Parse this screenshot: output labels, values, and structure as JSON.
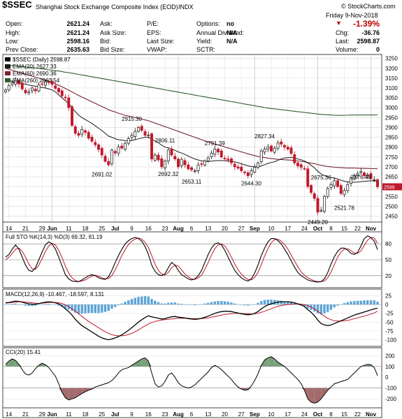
{
  "header": {
    "symbol": "$SSEC",
    "name": "Shanghai Stock Exchange Composite Index (EOD)",
    "exchange": "INDX",
    "copyright": "© StockCharts.com",
    "date": "Friday   9-Nov-2018",
    "change_pct": "-1.39%",
    "quote": [
      {
        "label": "Open:",
        "value": "2621.24"
      },
      {
        "label": "High:",
        "value": "2621.24"
      },
      {
        "label": "Low:",
        "value": "2598.16"
      },
      {
        "label": "Prev Close:",
        "value": "2635.63"
      }
    ],
    "col2": [
      "Ask:",
      "Ask Size:",
      "Bid:",
      "Bid Size:"
    ],
    "col3": [
      "P/E:",
      "EPS:",
      "Last Size:",
      "VWAP:"
    ],
    "col4": [
      {
        "label": "Options:",
        "value": "no"
      },
      {
        "label": "Annual Dividend:",
        "value": "N/A"
      },
      {
        "label": "Yield:",
        "value": "N/A"
      },
      {
        "label": "SCTR:",
        "value": ""
      }
    ],
    "right": [
      {
        "label": "Chg:",
        "value": "-36.76"
      },
      {
        "label": "Last:",
        "value": "2598.87"
      },
      {
        "label": "Volume:",
        "value": "0"
      }
    ]
  },
  "colors": {
    "up": "#111111",
    "down": "#c0182b",
    "ema20": "#1a1a1a",
    "ema60": "#7a2330",
    "ema260": "#2e5e2e",
    "sto_k": "#000000",
    "sto_d": "#c0182b",
    "macd": "#000000",
    "signal": "#c0182b",
    "hist": "#5da4d6",
    "cci_pos": "#7aa07a",
    "cci_neg": "#a36b6b"
  },
  "chart_data": {
    "type": "candlestick",
    "price_panel": {
      "legend": [
        "$SSEC (Daily) 2598.87",
        "EMA(20) 2627.33",
        "EMA(60) 2690.36",
        "EMA(260) 2963.54"
      ],
      "yticks": [
        2450,
        2500,
        2550,
        2600,
        2650,
        2700,
        2750,
        2800,
        2850,
        2900,
        2950,
        3000,
        3050,
        3100,
        3150,
        3200,
        3250
      ],
      "ylim": [
        2420,
        3270
      ],
      "last_price": 2598.87,
      "annotations": [
        {
          "text": "2915.30",
          "i": 38,
          "y": 2915.3
        },
        {
          "text": "2806.11",
          "i": 48,
          "y": 2806.11
        },
        {
          "text": "2791.39",
          "i": 63,
          "y": 2791.39
        },
        {
          "text": "2827.34",
          "i": 78,
          "y": 2827.34
        },
        {
          "text": "2691.02",
          "i": 29,
          "y": 2691.02
        },
        {
          "text": "2692.32",
          "i": 49,
          "y": 2692.32
        },
        {
          "text": "2653.11",
          "i": 56,
          "y": 2653.11
        },
        {
          "text": "2644.30",
          "i": 74,
          "y": 2644.3
        },
        {
          "text": "2675.36",
          "i": 95,
          "y": 2675.36
        },
        {
          "text": "2676.48",
          "i": 107,
          "y": 2676.48
        },
        {
          "text": "2521.78",
          "i": 102,
          "y": 2521.78
        },
        {
          "text": "2449.20",
          "i": 94,
          "y": 2449.2
        }
      ],
      "closes": [
        3090,
        3112,
        3126,
        3138,
        3120,
        3095,
        3075,
        3080,
        3100,
        3085,
        3115,
        3120,
        3132,
        3128,
        3118,
        3098,
        3080,
        3060,
        3050,
        3000,
        2910,
        2870,
        2860,
        2890,
        2875,
        2845,
        2830,
        2812,
        2788,
        2760,
        2728,
        2710,
        2785,
        2770,
        2800,
        2795,
        2820,
        2843,
        2860,
        2880,
        2900,
        2885,
        2860,
        2862,
        2740,
        2760,
        2735,
        2700,
        2730,
        2785,
        2760,
        2740,
        2700,
        2738,
        2710,
        2690,
        2685,
        2680,
        2710,
        2715,
        2730,
        2745,
        2770,
        2790,
        2775,
        2750,
        2740,
        2735,
        2720,
        2700,
        2693,
        2680,
        2670,
        2655,
        2680,
        2698,
        2720,
        2781,
        2790,
        2800,
        2780,
        2795,
        2821,
        2815,
        2800,
        2790,
        2768,
        2720,
        2705,
        2698,
        2690,
        2600,
        2570,
        2540,
        2470,
        2480,
        2550,
        2590,
        2610,
        2630,
        2600,
        2565,
        2580,
        2610,
        2645,
        2655,
        2665,
        2676,
        2655,
        2660,
        2640,
        2635,
        2598.87
      ],
      "ema20": [
        3150,
        3140,
        3132,
        3128,
        3125,
        3122,
        3119,
        3115,
        3112,
        3109,
        3106,
        3103,
        3100,
        3095,
        3090,
        3080,
        3065,
        3050,
        3035,
        3020,
        3000,
        2980,
        2962,
        2950,
        2940,
        2930,
        2920,
        2908,
        2896,
        2884,
        2870,
        2856,
        2850,
        2843,
        2838,
        2835,
        2833,
        2832,
        2834,
        2838,
        2842,
        2846,
        2850,
        2850,
        2840,
        2832,
        2822,
        2810,
        2800,
        2796,
        2790,
        2784,
        2776,
        2770,
        2763,
        2755,
        2747,
        2740,
        2735,
        2731,
        2729,
        2728,
        2729,
        2731,
        2732,
        2732,
        2731,
        2730,
        2728,
        2725,
        2721,
        2716,
        2710,
        2705,
        2702,
        2700,
        2700,
        2705,
        2711,
        2718,
        2722,
        2726,
        2733,
        2740,
        2745,
        2747,
        2748,
        2745,
        2740,
        2736,
        2730,
        2720,
        2708,
        2695,
        2678,
        2664,
        2656,
        2650,
        2646,
        2643,
        2638,
        2632,
        2627,
        2624,
        2623,
        2622,
        2623,
        2625,
        2627,
        2628,
        2629,
        2629,
        2627.33
      ],
      "ema60": [
        3200,
        3195,
        3190,
        3185,
        3180,
        3175,
        3170,
        3165,
        3160,
        3155,
        3150,
        3145,
        3140,
        3134,
        3128,
        3121,
        3114,
        3106,
        3098,
        3089,
        3080,
        3071,
        3062,
        3054,
        3046,
        3038,
        3030,
        3022,
        3014,
        3006,
        2998,
        2990,
        2984,
        2978,
        2972,
        2967,
        2962,
        2958,
        2954,
        2950,
        2946,
        2942,
        2938,
        2934,
        2928,
        2922,
        2916,
        2910,
        2904,
        2898,
        2892,
        2886,
        2880,
        2874,
        2868,
        2862,
        2856,
        2850,
        2844,
        2838,
        2832,
        2826,
        2821,
        2816,
        2811,
        2806,
        2801,
        2796,
        2791,
        2786,
        2781,
        2776,
        2771,
        2766,
        2761,
        2757,
        2753,
        2750,
        2747,
        2744,
        2742,
        2740,
        2738,
        2737,
        2736,
        2735,
        2734,
        2732,
        2730,
        2728,
        2725,
        2722,
        2719,
        2716,
        2712,
        2708,
        2705,
        2702,
        2700,
        2698,
        2697,
        2696,
        2695,
        2694,
        2694,
        2694,
        2693,
        2693,
        2692,
        2692,
        2691,
        2691,
        2690.36
      ],
      "ema260": [
        3215,
        3214,
        3213,
        3212,
        3210,
        3209,
        3207,
        3205,
        3203,
        3201,
        3199,
        3197,
        3195,
        3192,
        3190,
        3188,
        3186,
        3183,
        3180,
        3178,
        3175,
        3172,
        3169,
        3166,
        3163,
        3160,
        3157,
        3154,
        3151,
        3148,
        3145,
        3142,
        3139,
        3136,
        3133,
        3130,
        3127,
        3124,
        3121,
        3118,
        3115,
        3112,
        3109,
        3106,
        3103,
        3100,
        3097,
        3094,
        3091,
        3088,
        3085,
        3082,
        3079,
        3076,
        3073,
        3070,
        3067,
        3064,
        3061,
        3058,
        3055,
        3052,
        3049,
        3046,
        3043,
        3040,
        3037,
        3034,
        3031,
        3028,
        3025,
        3022,
        3019,
        3016,
        3013,
        3010,
        3007,
        3004,
        3001,
        2998,
        2996,
        2994,
        2992,
        2990,
        2988,
        2986,
        2984,
        2982,
        2980,
        2978,
        2976,
        2974,
        2972,
        2970,
        2968,
        2966,
        2965,
        2964,
        2963,
        2962,
        2961,
        2961,
        2962,
        2962,
        2963,
        2963,
        2963,
        2963,
        2963,
        2963,
        2963,
        2963,
        2963.54
      ]
    },
    "x_axis": {
      "labels": [
        {
          "text": "14",
          "i": 1,
          "bold": false
        },
        {
          "text": "21",
          "i": 6,
          "bold": false
        },
        {
          "text": "29",
          "i": 11,
          "bold": false
        },
        {
          "text": "Jun",
          "i": 14,
          "bold": true
        },
        {
          "text": "11",
          "i": 19,
          "bold": false
        },
        {
          "text": "18",
          "i": 24,
          "bold": false
        },
        {
          "text": "25",
          "i": 29,
          "bold": false
        },
        {
          "text": "Jul",
          "i": 33,
          "bold": true
        },
        {
          "text": "9",
          "i": 38,
          "bold": false
        },
        {
          "text": "16",
          "i": 43,
          "bold": false
        },
        {
          "text": "23",
          "i": 48,
          "bold": false
        },
        {
          "text": "Aug",
          "i": 52,
          "bold": true
        },
        {
          "text": "6",
          "i": 56,
          "bold": false
        },
        {
          "text": "13",
          "i": 61,
          "bold": false
        },
        {
          "text": "20",
          "i": 66,
          "bold": false
        },
        {
          "text": "27",
          "i": 71,
          "bold": false
        },
        {
          "text": "Sep",
          "i": 75,
          "bold": true
        },
        {
          "text": "10",
          "i": 80,
          "bold": false
        },
        {
          "text": "17",
          "i": 85,
          "bold": false
        },
        {
          "text": "24",
          "i": 90,
          "bold": false
        },
        {
          "text": "Oct",
          "i": 94,
          "bold": true
        },
        {
          "text": "8",
          "i": 98,
          "bold": false
        },
        {
          "text": "15",
          "i": 102,
          "bold": false
        },
        {
          "text": "22",
          "i": 106,
          "bold": false
        },
        {
          "text": "Nov",
          "i": 110,
          "bold": true
        }
      ]
    },
    "sto_panel": {
      "legend": "Full STO %K(14,3) %D(3) 69.32, 81.19",
      "yticks": [
        20,
        50,
        80
      ],
      "ylim": [
        0,
        100
      ],
      "k": [
        55,
        60,
        70,
        78,
        70,
        55,
        40,
        30,
        28,
        35,
        50,
        65,
        78,
        84,
        80,
        70,
        55,
        38,
        22,
        14,
        10,
        9,
        9,
        12,
        16,
        20,
        22,
        20,
        16,
        14,
        13,
        18,
        30,
        45,
        58,
        70,
        80,
        86,
        90,
        92,
        90,
        85,
        75,
        60,
        40,
        28,
        22,
        20,
        24,
        35,
        45,
        40,
        30,
        22,
        18,
        14,
        12,
        14,
        20,
        30,
        45,
        60,
        72,
        80,
        82,
        78,
        68,
        55,
        42,
        30,
        22,
        16,
        12,
        10,
        14,
        25,
        40,
        58,
        72,
        84,
        90,
        90,
        86,
        80,
        70,
        60,
        48,
        36,
        26,
        20,
        16,
        12,
        10,
        9,
        8,
        9,
        14,
        26,
        42,
        56,
        66,
        72,
        72,
        68,
        62,
        60,
        64,
        76,
        90,
        95,
        92,
        85,
        69.32
      ],
      "d": [
        50,
        55,
        62,
        70,
        72,
        66,
        55,
        42,
        33,
        32,
        40,
        52,
        66,
        76,
        81,
        78,
        68,
        54,
        38,
        25,
        16,
        11,
        9,
        10,
        12,
        16,
        19,
        21,
        19,
        16,
        14,
        15,
        20,
        31,
        44,
        58,
        69,
        79,
        85,
        89,
        91,
        89,
        83,
        73,
        58,
        42,
        30,
        23,
        21,
        26,
        35,
        40,
        38,
        31,
        23,
        18,
        14,
        13,
        16,
        21,
        32,
        45,
        59,
        71,
        78,
        80,
        76,
        67,
        55,
        42,
        31,
        23,
        17,
        13,
        12,
        17,
        26,
        41,
        57,
        71,
        82,
        88,
        89,
        85,
        79,
        70,
        59,
        48,
        37,
        27,
        21,
        16,
        13,
        10,
        9,
        9,
        10,
        16,
        27,
        41,
        55,
        65,
        70,
        71,
        67,
        63,
        62,
        67,
        77,
        87,
        92,
        91,
        81.19
      ]
    },
    "macd_panel": {
      "legend": "MACD(12,26,9) -10.467, -18.597, 8.131",
      "yticks": [
        -100,
        -75,
        -50,
        -25,
        0,
        25
      ],
      "ylim": [
        -115,
        40
      ],
      "macd": [
        5,
        6,
        8,
        10,
        9,
        7,
        4,
        2,
        1,
        1,
        3,
        5,
        7,
        8,
        7,
        5,
        2,
        -4,
        -12,
        -20,
        -30,
        -42,
        -52,
        -60,
        -66,
        -72,
        -78,
        -84,
        -90,
        -95,
        -98,
        -100,
        -98,
        -95,
        -91,
        -86,
        -80,
        -73,
        -66,
        -58,
        -50,
        -43,
        -37,
        -32,
        -35,
        -37,
        -39,
        -41,
        -40,
        -37,
        -35,
        -34,
        -36,
        -37,
        -38,
        -40,
        -41,
        -42,
        -41,
        -39,
        -36,
        -33,
        -29,
        -25,
        -22,
        -20,
        -19,
        -19,
        -20,
        -22,
        -24,
        -26,
        -28,
        -29,
        -28,
        -25,
        -20,
        -12,
        -6,
        -1,
        2,
        5,
        7,
        8,
        8,
        8,
        7,
        5,
        2,
        -1,
        -6,
        -14,
        -22,
        -32,
        -44,
        -54,
        -58,
        -60,
        -58,
        -54,
        -50,
        -46,
        -42,
        -38,
        -34,
        -30,
        -27,
        -24,
        -21,
        -18,
        -15,
        -12,
        -10.467
      ],
      "signal": [
        4,
        5,
        6,
        7,
        8,
        8,
        7,
        6,
        5,
        4,
        3,
        4,
        5,
        6,
        6,
        6,
        5,
        3,
        -1,
        -6,
        -12,
        -19,
        -26,
        -34,
        -41,
        -48,
        -54,
        -60,
        -66,
        -72,
        -77,
        -82,
        -86,
        -88,
        -89,
        -89,
        -88,
        -85,
        -82,
        -77,
        -72,
        -66,
        -61,
        -55,
        -51,
        -48,
        -46,
        -44,
        -43,
        -42,
        -41,
        -40,
        -39,
        -39,
        -39,
        -39,
        -40,
        -40,
        -40,
        -40,
        -39,
        -38,
        -36,
        -34,
        -32,
        -30,
        -28,
        -27,
        -26,
        -25,
        -25,
        -25,
        -26,
        -26,
        -27,
        -26,
        -25,
        -22,
        -19,
        -15,
        -12,
        -8,
        -5,
        -3,
        -1,
        0,
        1,
        2,
        2,
        1,
        0,
        -3,
        -7,
        -12,
        -19,
        -26,
        -33,
        -39,
        -43,
        -46,
        -47,
        -47,
        -46,
        -45,
        -43,
        -40,
        -38,
        -35,
        -33,
        -30,
        -27,
        -24,
        -18.597
      ]
    },
    "cci_panel": {
      "legend": "CCI(20) 15.41",
      "yticks": [
        -200,
        -100,
        0,
        100,
        200
      ],
      "ylim": [
        -270,
        260
      ],
      "cci": [
        120,
        150,
        170,
        155,
        120,
        70,
        30,
        20,
        40,
        80,
        110,
        130,
        115,
        90,
        50,
        10,
        -60,
        -140,
        -190,
        -210,
        -200,
        -190,
        -170,
        -150,
        -135,
        -120,
        -110,
        -90,
        -80,
        -70,
        -60,
        -50,
        -30,
        0,
        40,
        70,
        80,
        90,
        110,
        130,
        150,
        170,
        180,
        150,
        40,
        -60,
        -90,
        -80,
        -40,
        20,
        40,
        0,
        -50,
        -80,
        -90,
        -100,
        -90,
        -70,
        -40,
        -10,
        20,
        50,
        90,
        110,
        95,
        70,
        40,
        10,
        -20,
        -60,
        -90,
        -110,
        -120,
        -115,
        -80,
        -30,
        30,
        110,
        160,
        180,
        190,
        170,
        140,
        120,
        100,
        70,
        40,
        10,
        -20,
        -60,
        -120,
        -200,
        -230,
        -240,
        -230,
        -200,
        -160,
        -120,
        -90,
        -60,
        -50,
        -40,
        -30,
        -20,
        10,
        40,
        70,
        100,
        110,
        120,
        115,
        90,
        15.41
      ]
    }
  }
}
